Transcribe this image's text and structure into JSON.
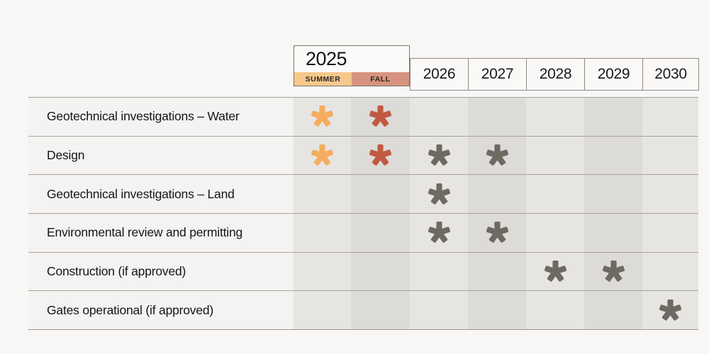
{
  "chart_data": {
    "type": "table",
    "title": "",
    "description_columns": [
      "Summer 2025",
      "Fall 2025",
      "2026",
      "2027",
      "2028",
      "2029",
      "2030"
    ],
    "header": {
      "group_year": "2025",
      "seasons": [
        "SUMMER",
        "FALL"
      ],
      "years": [
        "2026",
        "2027",
        "2028",
        "2029",
        "2030"
      ]
    },
    "rows": [
      {
        "label": "Geotechnical investigations – Water",
        "marks": [
          {
            "col": 0,
            "color": "orange"
          },
          {
            "col": 1,
            "color": "red"
          }
        ]
      },
      {
        "label": "Design",
        "marks": [
          {
            "col": 0,
            "color": "orange"
          },
          {
            "col": 1,
            "color": "red"
          },
          {
            "col": 2,
            "color": "gray"
          },
          {
            "col": 3,
            "color": "gray"
          }
        ]
      },
      {
        "label": "Geotechnical investigations – Land",
        "marks": [
          {
            "col": 2,
            "color": "gray"
          }
        ]
      },
      {
        "label": "Environmental review and permitting",
        "marks": [
          {
            "col": 2,
            "color": "gray"
          },
          {
            "col": 3,
            "color": "gray"
          }
        ]
      },
      {
        "label": "Construction (if approved)",
        "marks": [
          {
            "col": 4,
            "color": "gray"
          },
          {
            "col": 5,
            "color": "gray"
          }
        ]
      },
      {
        "label": "Gates operational (if approved)",
        "marks": [
          {
            "col": 6,
            "color": "gray"
          }
        ]
      }
    ],
    "mark_colors": {
      "orange": "#F5AD61",
      "red": "#C05A42",
      "gray": "#6E6A62"
    },
    "band_colors": {
      "light": "#E7E5E2",
      "dark": "#DDDBD8"
    },
    "season_colors": {
      "summer": "#F7C88C",
      "fall": "#D6937F"
    },
    "legend_position": "none",
    "grid": "horizontal lines with alternating vertical column shading"
  }
}
